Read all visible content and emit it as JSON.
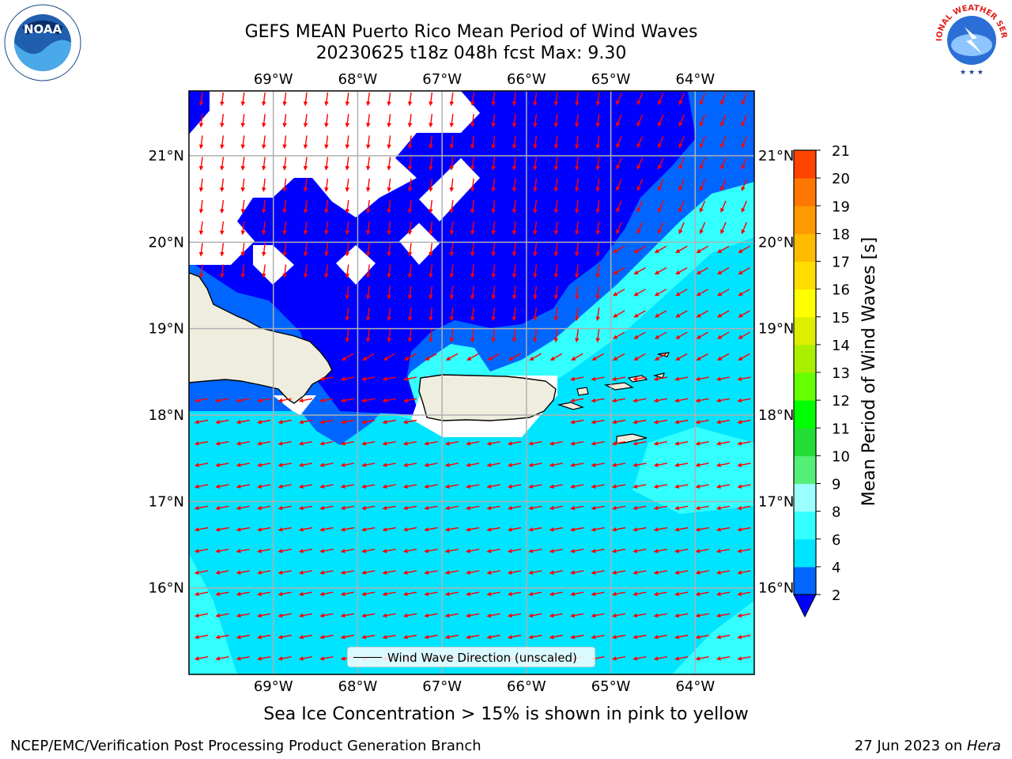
{
  "header": {
    "title_line1": "GEFS MEAN Puerto Rico Mean Period of Wind Waves",
    "title_line2": "20230625 t18z 048h fcst   Max: 9.30"
  },
  "map": {
    "region": "Puerto Rico",
    "lon_ticks": [
      "69°W",
      "68°W",
      "67°W",
      "66°W",
      "65°W",
      "64°W"
    ],
    "lat_ticks": [
      "21°N",
      "20°N",
      "19°N",
      "18°N",
      "17°N",
      "16°N"
    ],
    "lon_values": [
      -69,
      -68,
      -67,
      -66,
      -65,
      -64
    ],
    "lat_values": [
      21,
      20,
      19,
      18,
      17,
      16
    ],
    "extent": {
      "lon_min": -70.0,
      "lon_max": -63.3,
      "lat_min": 15.0,
      "lat_max": 21.75
    },
    "land_color": "#efedde",
    "no_data_color": "#ffffff",
    "arrow_color": "#ff0000",
    "gridline_color": "#b0b0b0"
  },
  "colorbar": {
    "label": "Mean Period of Wind Waves [s]",
    "tick_labels": [
      "2",
      "4",
      "6",
      "8",
      "9",
      "10",
      "11",
      "12",
      "13",
      "14",
      "15",
      "16",
      "17",
      "18",
      "19",
      "20",
      "21"
    ],
    "boundaries": [
      2,
      4,
      6,
      8,
      9,
      10,
      11,
      12,
      13,
      14,
      15,
      16,
      17,
      18,
      19,
      20,
      21
    ],
    "colors": [
      "#0066ff",
      "#00e5ff",
      "#33ffff",
      "#99ffff",
      "#55ee77",
      "#22dd33",
      "#00ff00",
      "#66ff00",
      "#aaee00",
      "#ddee00",
      "#ffff00",
      "#ffdd00",
      "#ffbb00",
      "#ff9900",
      "#ff7700",
      "#ff4400",
      "#ff0000"
    ],
    "under_color": "#0000ff"
  },
  "legend": {
    "label": "Wind Wave Direction (unscaled)"
  },
  "caption": "Sea Ice Concentration > 15% is shown in pink to yellow",
  "footer": {
    "left": "NCEP/EMC/Verification Post Processing Product Generation Branch",
    "right_prefix": "27 Jun 2023 on ",
    "right_host": "Hera"
  },
  "logos": {
    "noaa_text": "NOAA",
    "nws_text": "NATIONAL WEATHER SERVICE"
  }
}
